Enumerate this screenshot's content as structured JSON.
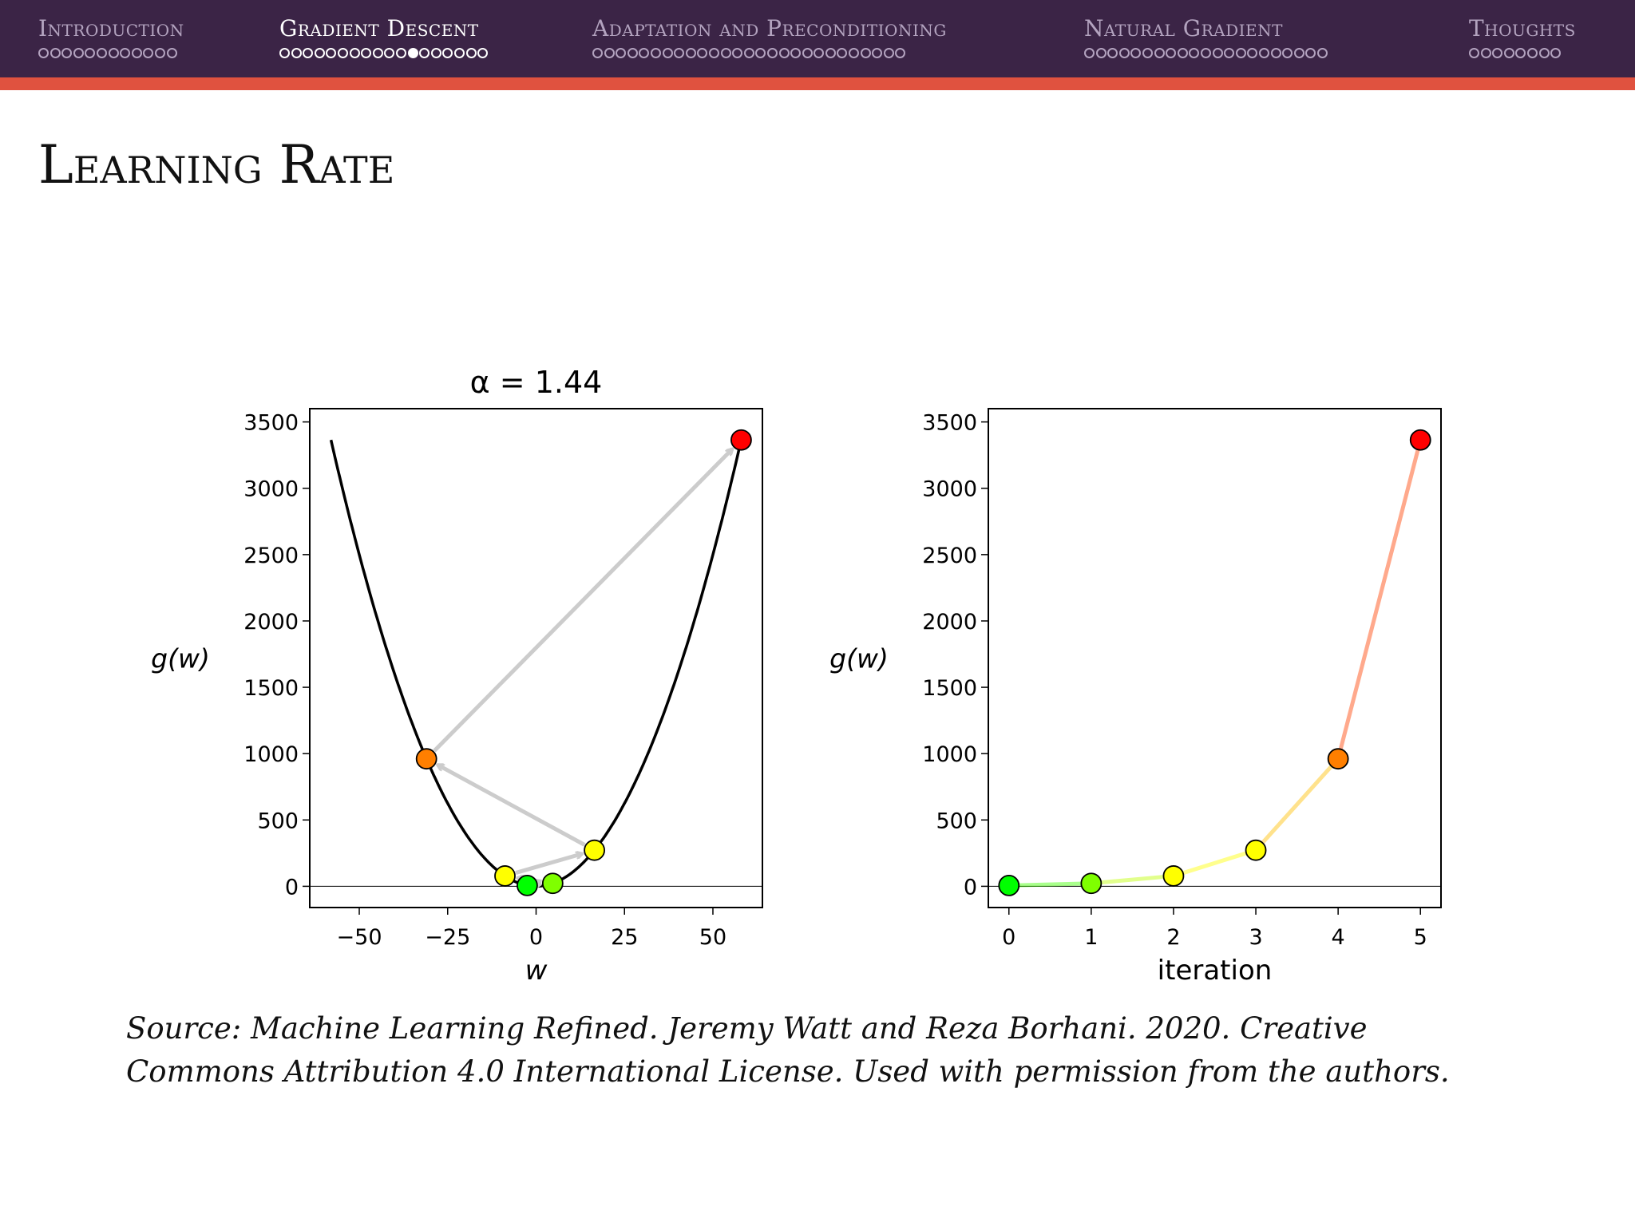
{
  "nav": {
    "sections": [
      {
        "title": "Introduction",
        "dots": 12,
        "active_dot": -1
      },
      {
        "title": "Gradient Descent",
        "dots": 18,
        "active_dot": 11
      },
      {
        "title": "Adaptation and Preconditioning",
        "dots": 27,
        "active_dot": -1
      },
      {
        "title": "Natural Gradient",
        "dots": 21,
        "active_dot": -1
      },
      {
        "title": "Thoughts",
        "dots": 8,
        "active_dot": -1
      }
    ]
  },
  "slide": {
    "title": "Learning Rate",
    "source": "Source: Machine Learning Refined. Jeremy Watt and Reza Borhani. 2020. Creative Commons Attribution 4.0 International License. Used with permission from the authors."
  },
  "colors": {
    "header_bg": "#3b2446",
    "header_accent": "#e0523f",
    "nav_inactive": "#b3a3bf",
    "path_arrow": "#cccccc",
    "curve": "#000000"
  },
  "chart_data": [
    {
      "type": "line",
      "title": "α = 1.44",
      "xlabel": "w",
      "ylabel": "g(w)",
      "xlim": [
        -64,
        64
      ],
      "ylim": [
        -160,
        3600
      ],
      "xticks": [
        -50,
        -25,
        0,
        25,
        50
      ],
      "xtick_labels": [
        "−50",
        "−25",
        "0",
        "25",
        "50"
      ],
      "yticks": [
        0,
        500,
        1000,
        1500,
        2000,
        2500,
        3000,
        3500
      ],
      "curve": {
        "function": "g(w) = w^2",
        "domain": [
          -58,
          58
        ]
      },
      "points": [
        {
          "step": 0,
          "w": -2.5,
          "g": 6,
          "color": "#00ff00"
        },
        {
          "step": 1,
          "w": 4.7,
          "g": 22,
          "color": "#7fff00"
        },
        {
          "step": 2,
          "w": -8.8,
          "g": 78,
          "color": "#ffff00"
        },
        {
          "step": 3,
          "w": 16.5,
          "g": 272,
          "color": "#ffff00"
        },
        {
          "step": 4,
          "w": -31,
          "g": 961,
          "color": "#ff7f00"
        },
        {
          "step": 5,
          "w": 58,
          "g": 3364,
          "color": "#ff0000"
        }
      ]
    },
    {
      "type": "line",
      "title": "",
      "xlabel": "iteration",
      "ylabel": "g(w)",
      "xlim": [
        -0.25,
        5.25
      ],
      "ylim": [
        -160,
        3600
      ],
      "xticks": [
        0,
        1,
        2,
        3,
        4,
        5
      ],
      "yticks": [
        0,
        500,
        1000,
        1500,
        2000,
        2500,
        3000,
        3500
      ],
      "x": [
        0,
        1,
        2,
        3,
        4,
        5
      ],
      "y": [
        6,
        22,
        78,
        272,
        961,
        3364
      ],
      "point_colors": [
        "#00ff00",
        "#7fff00",
        "#ffff00",
        "#ffff00",
        "#ff7f00",
        "#ff0000"
      ]
    }
  ]
}
